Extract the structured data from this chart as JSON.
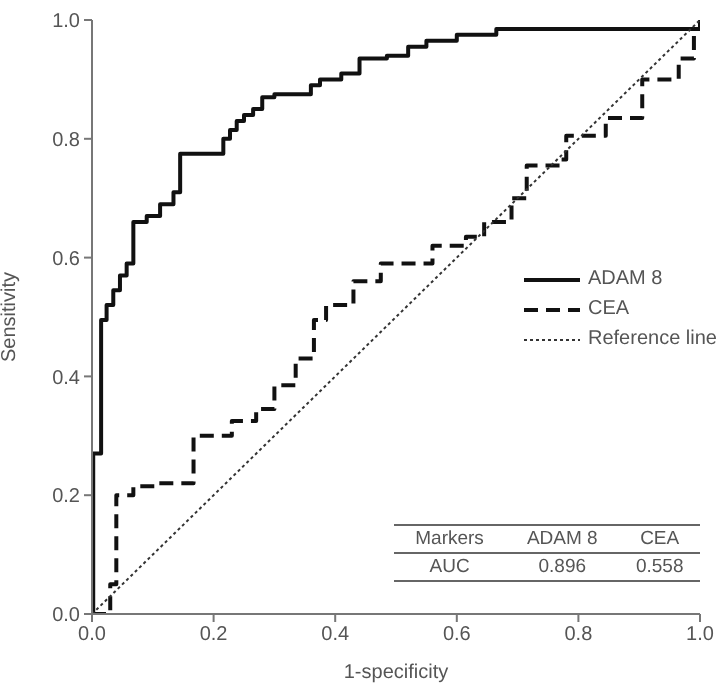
{
  "chart_data": {
    "type": "line",
    "xlabel": "1-specificity",
    "ylabel": "Sensitivity",
    "xlim": [
      0,
      1
    ],
    "ylim": [
      0,
      1
    ],
    "xticks": [
      {
        "value": 0,
        "label": "0.0"
      },
      {
        "value": 0.2,
        "label": "0.2"
      },
      {
        "value": 0.4,
        "label": "0.4"
      },
      {
        "value": 0.6,
        "label": "0.6"
      },
      {
        "value": 0.8,
        "label": "0.8"
      },
      {
        "value": 1,
        "label": "1.0"
      }
    ],
    "yticks": [
      {
        "value": 0,
        "label": "0.0"
      },
      {
        "value": 0.2,
        "label": "0.2"
      },
      {
        "value": 0.4,
        "label": "0.4"
      },
      {
        "value": 0.6,
        "label": "0.6"
      },
      {
        "value": 0.8,
        "label": "0.8"
      },
      {
        "value": 1,
        "label": "1.0"
      }
    ],
    "grid": false,
    "legend": "right",
    "marker": "none",
    "series": [
      {
        "name": "ADAM 8",
        "type": "step",
        "line_style": "solid",
        "color": "#111111",
        "x": [
          0,
          0.002,
          0.015,
          0.024,
          0.035,
          0.046,
          0.057,
          0.068,
          0.09,
          0.112,
          0.134,
          0.145,
          0.216,
          0.227,
          0.238,
          0.25,
          0.265,
          0.28,
          0.3,
          0.36,
          0.375,
          0.41,
          0.44,
          0.485,
          0.52,
          0.55,
          0.6,
          0.665,
          1
        ],
        "values": [
          0,
          0.27,
          0.495,
          0.52,
          0.545,
          0.57,
          0.59,
          0.66,
          0.67,
          0.69,
          0.71,
          0.775,
          0.8,
          0.815,
          0.83,
          0.84,
          0.85,
          0.87,
          0.875,
          0.89,
          0.9,
          0.91,
          0.935,
          0.94,
          0.955,
          0.965,
          0.975,
          0.985,
          1
        ]
      },
      {
        "name": "CEA",
        "type": "step",
        "line_style": "dashed",
        "color": "#111111",
        "x": [
          0,
          0.03,
          0.04,
          0.068,
          0.11,
          0.167,
          0.23,
          0.27,
          0.3,
          0.335,
          0.365,
          0.385,
          0.43,
          0.475,
          0.56,
          0.615,
          0.645,
          0.69,
          0.715,
          0.77,
          0.78,
          0.845,
          0.905,
          0.965,
          0.99,
          1
        ],
        "values": [
          0,
          0.05,
          0.2,
          0.215,
          0.22,
          0.3,
          0.325,
          0.345,
          0.385,
          0.43,
          0.495,
          0.52,
          0.56,
          0.59,
          0.62,
          0.635,
          0.66,
          0.7,
          0.755,
          0.765,
          0.805,
          0.835,
          0.9,
          0.935,
          0.985,
          1
        ]
      },
      {
        "name": "Reference line",
        "type": "line",
        "line_style": "dotted",
        "color": "#333333",
        "x": [
          0,
          1
        ],
        "values": [
          0,
          1
        ]
      }
    ],
    "annotations": [
      "Markers",
      "ADAM 8",
      "CEA",
      "AUC",
      "0.896",
      "0.558"
    ]
  }
}
